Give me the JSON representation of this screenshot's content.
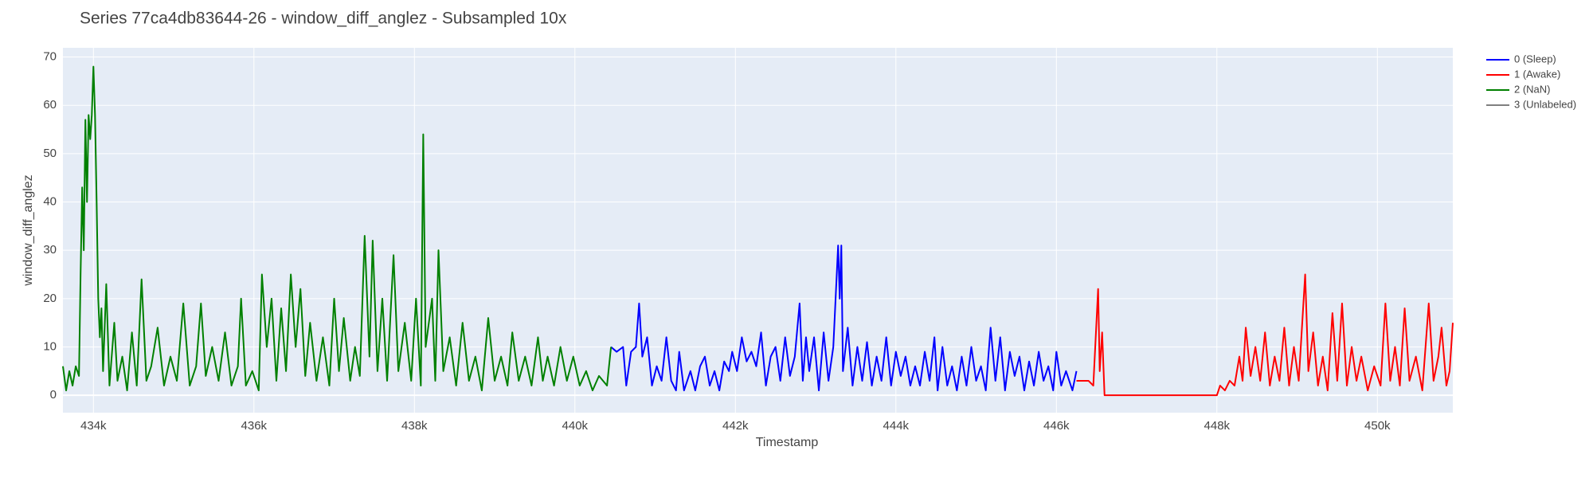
{
  "chart_data": {
    "type": "line",
    "title": "Series 77ca4db83644-26 - window_diff_anglez - Subsampled 10x",
    "x_label": "Timestamp",
    "y_label": "window_diff_anglez",
    "xlim": [
      433620,
      450940
    ],
    "ylim": [
      -3.6,
      71.9
    ],
    "xticks": [
      {
        "value": 434000,
        "label": "434k"
      },
      {
        "value": 436000,
        "label": "436k"
      },
      {
        "value": 438000,
        "label": "438k"
      },
      {
        "value": 440000,
        "label": "440k"
      },
      {
        "value": 442000,
        "label": "442k"
      },
      {
        "value": 444000,
        "label": "444k"
      },
      {
        "value": 446000,
        "label": "446k"
      },
      {
        "value": 448000,
        "label": "448k"
      },
      {
        "value": 450000,
        "label": "450k"
      }
    ],
    "yticks": [
      0,
      10,
      20,
      30,
      40,
      50,
      60,
      70
    ],
    "grid": true,
    "legend": "right",
    "series": [
      {
        "name": "0 (Sleep)",
        "color": "#0000ff",
        "x": [
          440450,
          440520,
          440600,
          440640,
          440700,
          440760,
          440800,
          440840,
          440900,
          440960,
          441020,
          441080,
          441140,
          441200,
          441260,
          441300,
          441360,
          441440,
          441500,
          441560,
          441620,
          441680,
          441740,
          441800,
          441860,
          441920,
          441960,
          442020,
          442080,
          442140,
          442200,
          442260,
          442320,
          442380,
          442440,
          442500,
          442560,
          442620,
          442680,
          442740,
          442800,
          442840,
          442880,
          442920,
          442980,
          443040,
          443100,
          443160,
          443220,
          443280,
          443300,
          443320,
          443340,
          443400,
          443460,
          443520,
          443580,
          443640,
          443700,
          443760,
          443820,
          443880,
          443940,
          444000,
          444060,
          444120,
          444180,
          444240,
          444300,
          444360,
          444420,
          444480,
          444520,
          444580,
          444640,
          444700,
          444760,
          444820,
          444880,
          444940,
          445000,
          445060,
          445120,
          445180,
          445240,
          445300,
          445360,
          445420,
          445480,
          445540,
          445600,
          445660,
          445720,
          445780,
          445840,
          445900,
          445960,
          446000,
          446060,
          446120,
          446200,
          446250
        ],
        "values": [
          10,
          9,
          10,
          2,
          9,
          10,
          19,
          8,
          12,
          2,
          6,
          3,
          12,
          3,
          1,
          9,
          1,
          5,
          1,
          6,
          8,
          2,
          5,
          1,
          7,
          5,
          9,
          5,
          12,
          7,
          9,
          6,
          13,
          2,
          8,
          10,
          3,
          12,
          4,
          8,
          19,
          3,
          12,
          5,
          12,
          1,
          13,
          3,
          10,
          31,
          20,
          31,
          5,
          14,
          2,
          10,
          3,
          11,
          2,
          8,
          3,
          12,
          2,
          9,
          4,
          8,
          2,
          6,
          2,
          9,
          3,
          12,
          1,
          10,
          2,
          6,
          1,
          8,
          2,
          10,
          3,
          6,
          1,
          14,
          3,
          12,
          1,
          9,
          4,
          8,
          1,
          7,
          2,
          9,
          3,
          6,
          1,
          9,
          2,
          5,
          1,
          5
        ]
      },
      {
        "name": "1 (Awake)",
        "color": "#ff0000",
        "x": [
          446250,
          446320,
          446400,
          446460,
          446520,
          446540,
          446570,
          446600,
          448000,
          448040,
          448100,
          448160,
          448220,
          448280,
          448320,
          448360,
          448420,
          448480,
          448540,
          448600,
          448660,
          448720,
          448780,
          448840,
          448900,
          448960,
          449020,
          449100,
          449140,
          449200,
          449260,
          449320,
          449380,
          449440,
          449500,
          449560,
          449620,
          449680,
          449740,
          449800,
          449880,
          449960,
          450040,
          450100,
          450160,
          450220,
          450280,
          450340,
          450400,
          450480,
          450560,
          450640,
          450700,
          450760,
          450800,
          450860,
          450900,
          450940
        ],
        "values": [
          3,
          3,
          3,
          2,
          22,
          5,
          13,
          0,
          0,
          2,
          1,
          3,
          2,
          8,
          3,
          14,
          4,
          10,
          3,
          13,
          2,
          8,
          3,
          14,
          2,
          10,
          3,
          25,
          5,
          13,
          2,
          8,
          1,
          17,
          3,
          19,
          2,
          10,
          3,
          8,
          1,
          6,
          2,
          19,
          3,
          10,
          2,
          18,
          3,
          8,
          1,
          19,
          3,
          8,
          14,
          2,
          5,
          15
        ]
      },
      {
        "name": "2 (NaN)",
        "color": "#008000",
        "x": [
          433620,
          433660,
          433700,
          433740,
          433780,
          433820,
          433840,
          433860,
          433880,
          433900,
          433920,
          433940,
          433960,
          433980,
          434000,
          434020,
          434040,
          434060,
          434080,
          434100,
          434120,
          434160,
          434200,
          434260,
          434300,
          434360,
          434420,
          434480,
          434540,
          434600,
          434660,
          434720,
          434800,
          434880,
          434960,
          435040,
          435120,
          435200,
          435280,
          435340,
          435400,
          435480,
          435560,
          435640,
          435720,
          435800,
          435840,
          435900,
          435980,
          436060,
          436100,
          436160,
          436220,
          436280,
          436340,
          436400,
          436460,
          436520,
          436580,
          436640,
          436700,
          436780,
          436860,
          436940,
          437000,
          437060,
          437120,
          437200,
          437260,
          437320,
          437380,
          437440,
          437480,
          437540,
          437600,
          437660,
          437740,
          437800,
          437880,
          437960,
          438020,
          438080,
          438110,
          438140,
          438220,
          438260,
          438300,
          438360,
          438440,
          438520,
          438600,
          438680,
          438760,
          438840,
          438920,
          439000,
          439080,
          439160,
          439220,
          439300,
          439380,
          439460,
          439540,
          439600,
          439660,
          439740,
          439820,
          439900,
          439980,
          440060,
          440140,
          440220,
          440300,
          440400,
          440450
        ],
        "values": [
          6,
          1,
          5,
          2,
          6,
          4,
          25,
          43,
          30,
          57,
          40,
          58,
          53,
          58,
          68,
          58,
          40,
          20,
          12,
          18,
          5,
          23,
          2,
          15,
          3,
          8,
          1,
          13,
          2,
          24,
          3,
          6,
          14,
          2,
          8,
          3,
          19,
          2,
          6,
          19,
          4,
          10,
          3,
          13,
          2,
          6,
          20,
          2,
          5,
          1,
          25,
          10,
          20,
          3,
          18,
          5,
          25,
          10,
          22,
          4,
          15,
          3,
          12,
          2,
          20,
          5,
          16,
          3,
          10,
          4,
          33,
          8,
          32,
          5,
          20,
          3,
          29,
          5,
          15,
          3,
          20,
          2,
          54,
          10,
          20,
          3,
          30,
          5,
          12,
          2,
          15,
          3,
          8,
          1,
          16,
          3,
          8,
          2,
          13,
          3,
          8,
          2,
          12,
          3,
          8,
          2,
          10,
          3,
          8,
          2,
          5,
          1,
          4,
          2,
          10
        ]
      },
      {
        "name": "3 (Unlabeled)",
        "color": "#808080",
        "x": [],
        "values": []
      }
    ]
  }
}
